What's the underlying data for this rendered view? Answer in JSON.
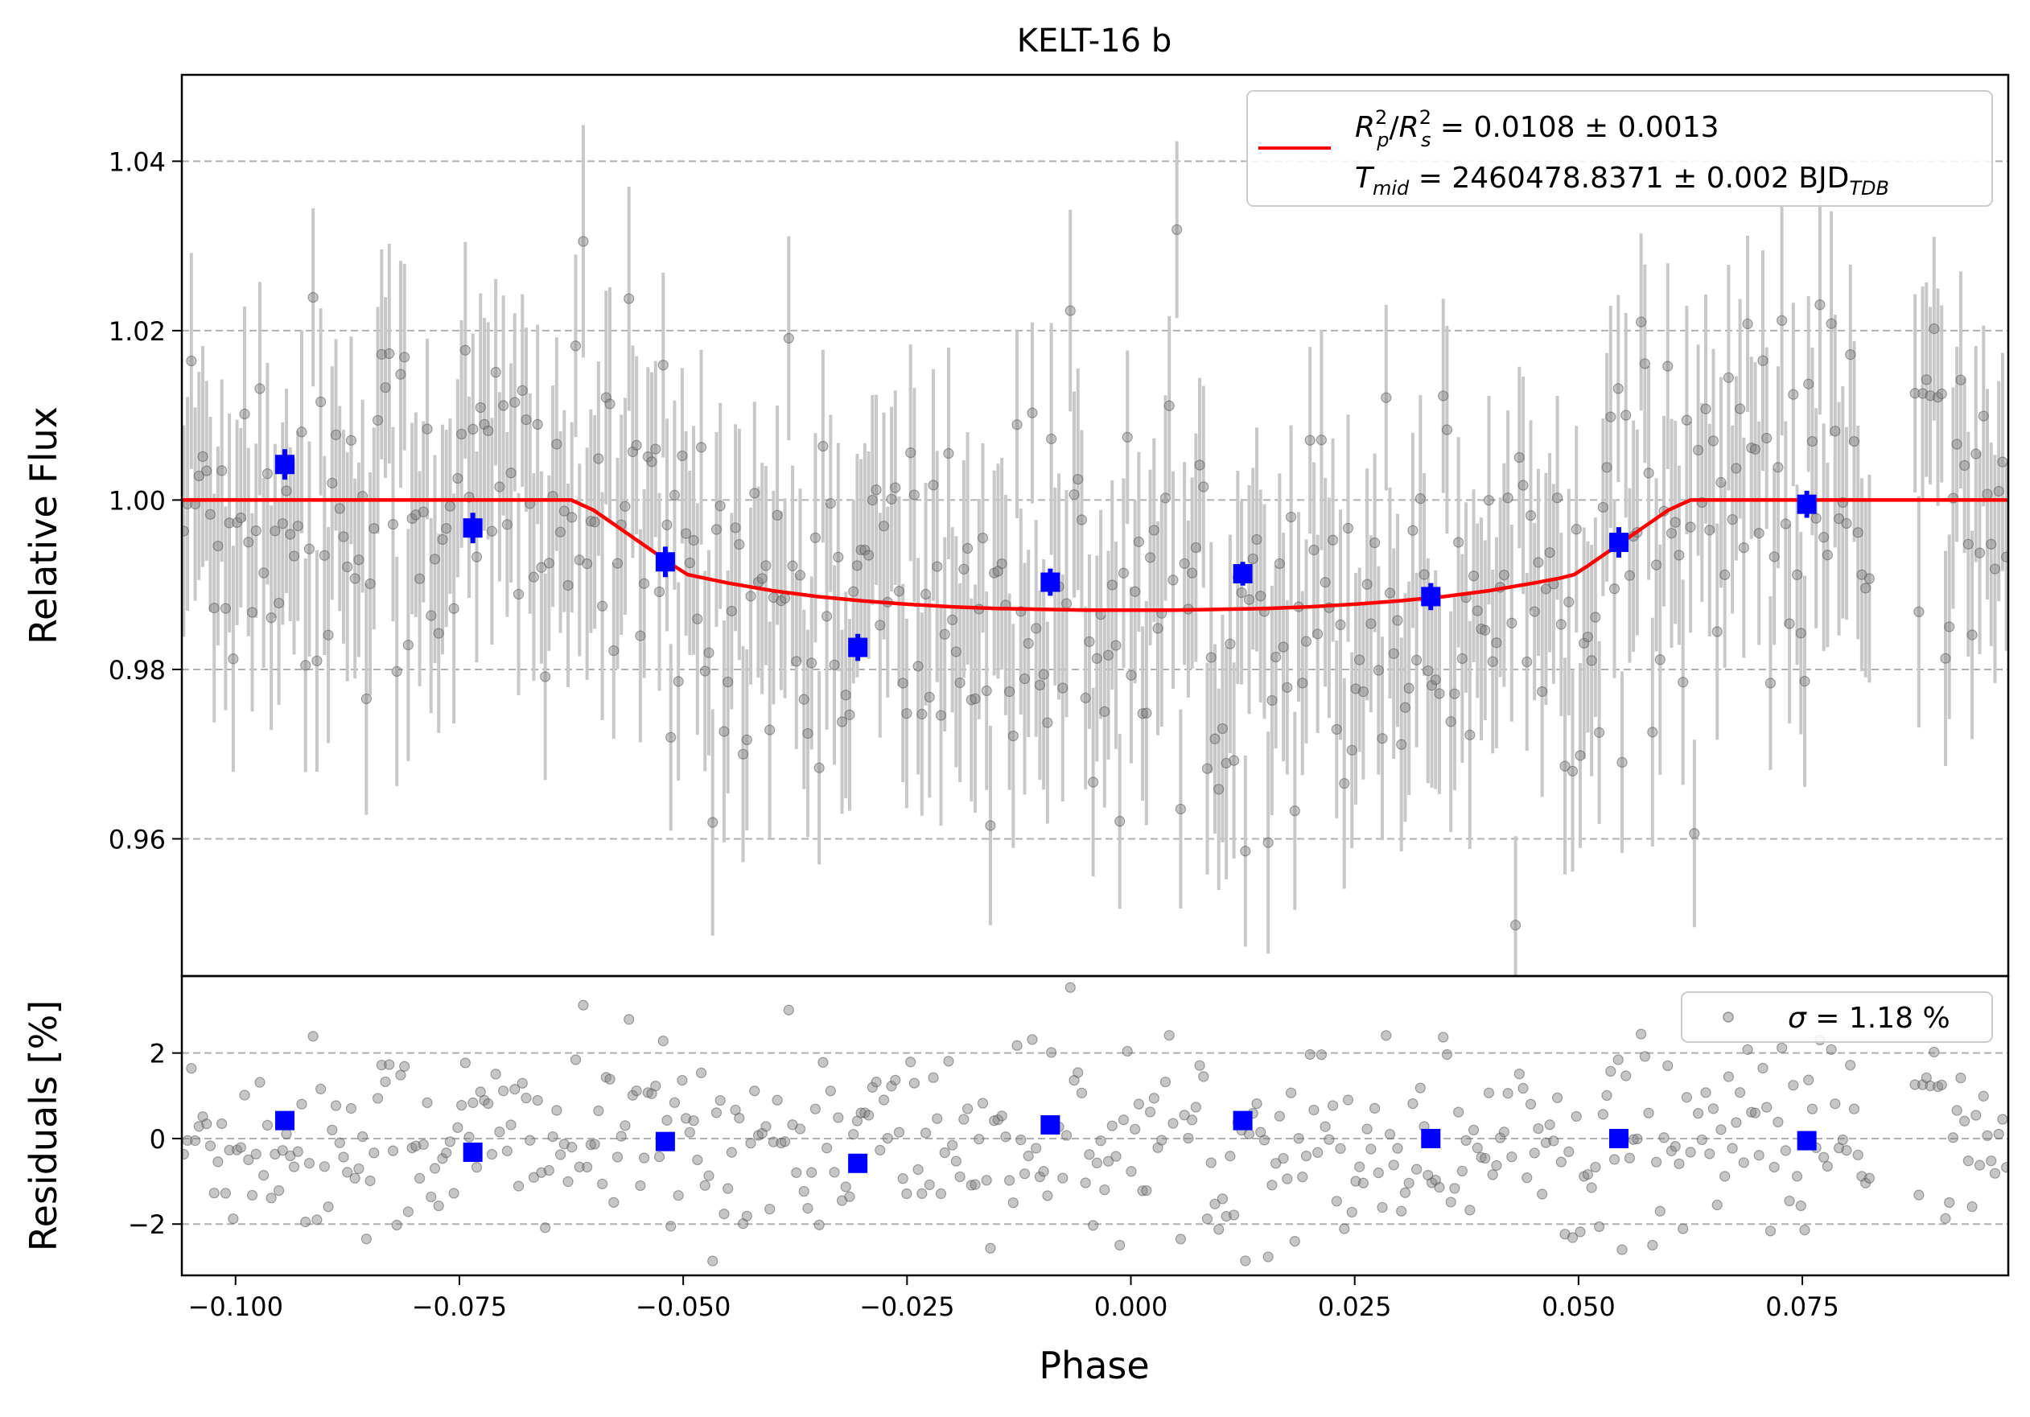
{
  "chart_data": [
    {
      "type": "scatter",
      "title": "KELT-16 b",
      "xlabel": "",
      "ylabel": "Relative Flux",
      "xlim": [
        -0.106,
        0.098
      ],
      "ylim": [
        0.9438,
        1.0502
      ],
      "yticks": [
        0.96,
        0.98,
        1.0,
        1.02,
        1.04
      ],
      "ytick_labels": [
        "0.96",
        "0.98",
        "1.00",
        "1.02",
        "1.04"
      ],
      "grid": "horizontal dashed",
      "legend": {
        "placement": "top-right",
        "line1_main": "R",
        "line1_rest": " = 0.0108 ± 0.0013",
        "line2_main": "T",
        "line2_sub": "mid",
        "line2_rest": " = 2460478.8371 ± 0.002 BJD",
        "line2_unit_sub": "TDB"
      },
      "series": [
        {
          "kind": "model",
          "color": "#ff0000",
          "x": [
            -0.106,
            -0.0625,
            -0.06,
            -0.057,
            -0.054,
            -0.051,
            -0.0495,
            -0.045,
            -0.04,
            -0.035,
            -0.03,
            -0.025,
            -0.02,
            -0.015,
            -0.01,
            -0.005,
            0.0,
            0.005,
            0.01,
            0.015,
            0.02,
            0.025,
            0.03,
            0.035,
            0.04,
            0.045,
            0.048,
            0.0495,
            0.051,
            0.054,
            0.057,
            0.06,
            0.0625,
            0.098
          ],
          "y": [
            1.0,
            1.0,
            0.9988,
            0.9966,
            0.9944,
            0.9922,
            0.9912,
            0.9902,
            0.9893,
            0.9886,
            0.9881,
            0.9877,
            0.9874,
            0.9872,
            0.9871,
            0.987,
            0.987,
            0.987,
            0.9871,
            0.9872,
            0.9874,
            0.9877,
            0.9881,
            0.9886,
            0.9893,
            0.9902,
            0.9908,
            0.9912,
            0.9922,
            0.9944,
            0.9966,
            0.9988,
            1.0,
            1.0
          ]
        },
        {
          "kind": "binned",
          "color": "#0000ff",
          "x": [
            -0.0945,
            -0.0735,
            -0.052,
            -0.0305,
            -0.009,
            0.0125,
            0.0335,
            0.0545,
            0.0755
          ],
          "y": [
            1.0042,
            0.9967,
            0.9927,
            0.9826,
            0.9903,
            0.9913,
            0.9886,
            0.995,
            0.9995
          ],
          "yerr": [
            0.0018,
            0.0018,
            0.0018,
            0.0016,
            0.0016,
            0.0014,
            0.0016,
            0.0018,
            0.0016
          ]
        }
      ],
      "raw_points": {
        "color": "#808080",
        "errorbar_color": "#c8c8c8",
        "count": 480,
        "x_range": [
          -0.106,
          0.098
        ],
        "typical_yerr": 0.012,
        "scatter_sigma": 0.0118
      }
    },
    {
      "type": "scatter",
      "title": "",
      "xlabel": "Phase",
      "ylabel": "Residuals [%]",
      "xlim": [
        -0.106,
        0.098
      ],
      "ylim": [
        -3.2,
        3.8
      ],
      "xticks": [
        -0.1,
        -0.075,
        -0.05,
        -0.025,
        0.0,
        0.025,
        0.05,
        0.075
      ],
      "xtick_labels": [
        "−0.100",
        "−0.075",
        "−0.050",
        "−0.025",
        "0.000",
        "0.025",
        "0.050",
        "0.075"
      ],
      "yticks": [
        -2,
        0,
        2
      ],
      "ytick_labels": [
        "−2",
        "0",
        "2"
      ],
      "grid": "horizontal dashed",
      "legend": {
        "placement": "top-right",
        "sigma_symbol": "σ",
        "label": " = 1.18 %"
      },
      "series": [
        {
          "kind": "binned",
          "color": "#0000ff",
          "x": [
            -0.0945,
            -0.0735,
            -0.052,
            -0.0305,
            -0.009,
            0.0125,
            0.0335,
            0.0545,
            0.0755
          ],
          "y": [
            0.42,
            -0.32,
            -0.07,
            -0.58,
            0.32,
            0.42,
            0.0,
            0.0,
            -0.05
          ]
        }
      ]
    }
  ]
}
